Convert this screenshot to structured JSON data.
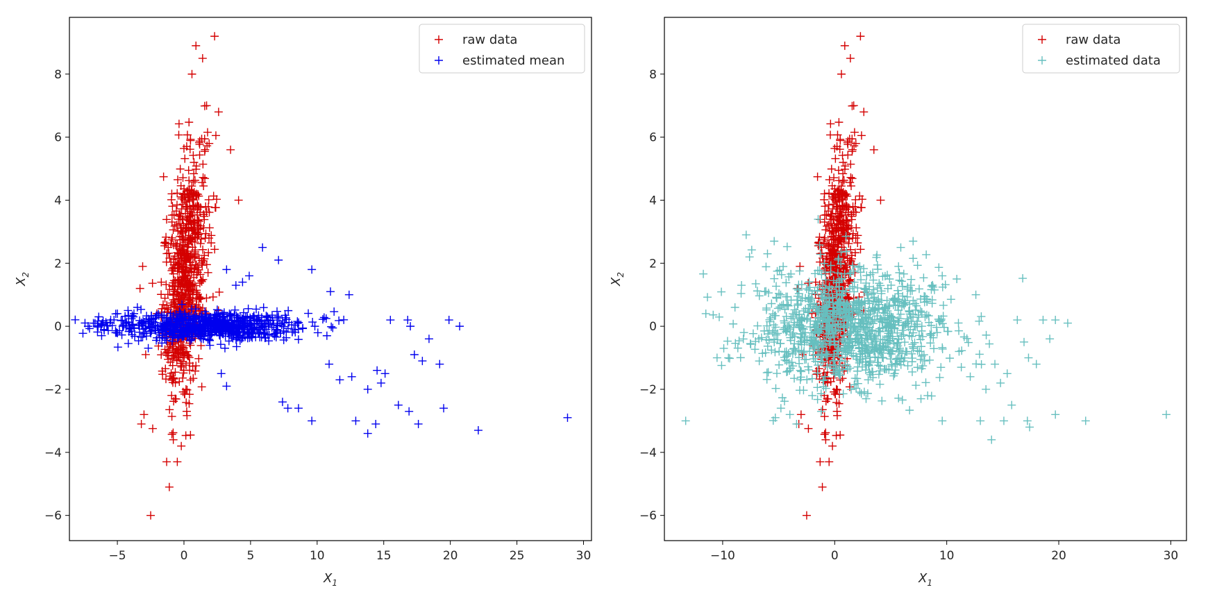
{
  "chart_data": [
    {
      "type": "scatter",
      "marker": "plus",
      "xlabel_var": "X",
      "xlabel_sub": "1",
      "ylabel_var": "X",
      "ylabel_sub": "2",
      "xlim": [
        -8.6,
        30.6
      ],
      "ylim": [
        -6.8,
        9.8
      ],
      "xticks": [
        -5,
        0,
        5,
        10,
        15,
        20,
        25,
        30
      ],
      "xtick_labels": [
        "−5",
        "0",
        "5",
        "10",
        "15",
        "20",
        "25",
        "30"
      ],
      "yticks": [
        -6,
        -4,
        -2,
        0,
        2,
        4,
        6,
        8
      ],
      "ytick_labels": [
        "−6",
        "−4",
        "−2",
        "0",
        "2",
        "4",
        "6",
        "8"
      ],
      "legend_position": "top-right",
      "grid": false,
      "series": [
        {
          "name": "raw data",
          "color": "#d40000",
          "cluster": {
            "count": 720,
            "x_mean": 0.1,
            "x_sd": 0.85,
            "y_mean": 1.6,
            "y_sd": 2.0,
            "corr": 0.45
          },
          "points": [
            [
              2.3,
              9.2
            ],
            [
              0.9,
              8.9
            ],
            [
              1.4,
              8.5
            ],
            [
              0.6,
              8.0
            ],
            [
              1.7,
              7.0
            ],
            [
              2.6,
              6.8
            ],
            [
              3.5,
              5.6
            ],
            [
              4.1,
              4.0
            ],
            [
              -2.5,
              -6.0
            ],
            [
              -1.1,
              -5.1
            ],
            [
              -1.3,
              -4.3
            ],
            [
              -0.5,
              -4.3
            ],
            [
              -0.2,
              -3.8
            ],
            [
              -0.8,
              -3.6
            ],
            [
              -3.2,
              -3.1
            ],
            [
              -3.0,
              -2.8
            ],
            [
              -3.3,
              1.2
            ],
            [
              -3.1,
              1.9
            ]
          ]
        },
        {
          "name": "estimated mean",
          "color": "#0000ee",
          "cluster": {
            "count": 760,
            "x_mean": 1.5,
            "x_sd": 3.6,
            "y_mean": 0.0,
            "y_sd": 0.22,
            "corr": 0.0
          },
          "points": [
            [
              28.8,
              -2.9
            ],
            [
              22.1,
              -3.3
            ],
            [
              19.5,
              -2.6
            ],
            [
              17.6,
              -3.1
            ],
            [
              16.9,
              -2.7
            ],
            [
              16.1,
              -2.5
            ],
            [
              14.4,
              -3.1
            ],
            [
              13.8,
              -3.4
            ],
            [
              12.9,
              -3.0
            ],
            [
              9.6,
              -3.0
            ],
            [
              8.6,
              -2.6
            ],
            [
              7.8,
              -2.6
            ],
            [
              7.4,
              -2.4
            ],
            [
              15.1,
              -1.5
            ],
            [
              14.8,
              -1.8
            ],
            [
              14.5,
              -1.4
            ],
            [
              13.8,
              -2.0
            ],
            [
              12.6,
              -1.6
            ],
            [
              11.7,
              -1.7
            ],
            [
              10.9,
              -1.2
            ],
            [
              19.2,
              -1.2
            ],
            [
              17.9,
              -1.1
            ],
            [
              17.3,
              -0.9
            ],
            [
              18.4,
              -0.4
            ],
            [
              19.9,
              0.2
            ],
            [
              20.7,
              0.0
            ],
            [
              16.8,
              0.2
            ],
            [
              15.5,
              0.2
            ],
            [
              17.0,
              0.0
            ],
            [
              5.9,
              2.5
            ],
            [
              7.1,
              2.1
            ],
            [
              9.6,
              1.8
            ],
            [
              11.0,
              1.1
            ],
            [
              12.4,
              1.0
            ],
            [
              4.9,
              1.6
            ],
            [
              4.4,
              1.4
            ],
            [
              3.9,
              1.3
            ],
            [
              3.2,
              1.8
            ],
            [
              3.2,
              -1.9
            ],
            [
              2.8,
              -1.5
            ],
            [
              -7.2,
              0.0
            ],
            [
              -6.8,
              0.1
            ],
            [
              -6.4,
              0.3
            ],
            [
              -6.0,
              -0.1
            ],
            [
              -5.5,
              0.2
            ],
            [
              -5.0,
              0.4
            ],
            [
              -4.6,
              0.0
            ],
            [
              -4.2,
              0.5
            ],
            [
              -3.8,
              0.3
            ],
            [
              -3.5,
              0.6
            ]
          ]
        }
      ]
    },
    {
      "type": "scatter",
      "marker": "plus",
      "xlabel_var": "X",
      "xlabel_sub": "1",
      "ylabel_var": "X",
      "ylabel_sub": "2",
      "xlim": [
        -15.2,
        31.4
      ],
      "ylim": [
        -6.8,
        9.8
      ],
      "xticks": [
        -10,
        0,
        10,
        20,
        30
      ],
      "xtick_labels": [
        "−10",
        "0",
        "10",
        "20",
        "30"
      ],
      "yticks": [
        -6,
        -4,
        -2,
        0,
        2,
        4,
        6,
        8
      ],
      "ytick_labels": [
        "−6",
        "−4",
        "−2",
        "0",
        "2",
        "4",
        "6",
        "8"
      ],
      "legend_position": "top-right",
      "grid": false,
      "series": [
        {
          "name": "raw data",
          "color": "#d40000",
          "cluster": {
            "count": 720,
            "x_mean": 0.1,
            "x_sd": 0.85,
            "y_mean": 1.6,
            "y_sd": 2.0,
            "corr": 0.45
          },
          "points": [
            [
              2.3,
              9.2
            ],
            [
              0.9,
              8.9
            ],
            [
              1.4,
              8.5
            ],
            [
              0.6,
              8.0
            ],
            [
              1.7,
              7.0
            ],
            [
              2.6,
              6.8
            ],
            [
              3.5,
              5.6
            ],
            [
              4.1,
              4.0
            ],
            [
              -2.5,
              -6.0
            ],
            [
              -1.1,
              -5.1
            ],
            [
              -1.3,
              -4.3
            ],
            [
              -0.5,
              -4.3
            ],
            [
              -0.2,
              -3.8
            ],
            [
              -0.8,
              -3.6
            ],
            [
              -3.2,
              -3.1
            ],
            [
              -3.0,
              -2.8
            ],
            [
              -3.3,
              1.2
            ],
            [
              -3.1,
              1.9
            ]
          ]
        },
        {
          "name": "estimated data",
          "color": "#66bfbf",
          "cluster": {
            "count": 1100,
            "x_mean": 1.5,
            "x_sd": 4.2,
            "y_mean": 0.0,
            "y_sd": 0.9,
            "corr": 0.0
          },
          "points": [
            [
              29.6,
              -2.8
            ],
            [
              22.4,
              -3.0
            ],
            [
              19.7,
              -2.8
            ],
            [
              17.4,
              -3.2
            ],
            [
              17.2,
              -3.0
            ],
            [
              15.8,
              -2.5
            ],
            [
              15.1,
              -3.0
            ],
            [
              14.0,
              -3.6
            ],
            [
              13.0,
              -3.0
            ],
            [
              9.6,
              -3.0
            ],
            [
              8.3,
              -2.2
            ],
            [
              7.7,
              -2.3
            ],
            [
              -13.3,
              -3.0
            ],
            [
              -11.5,
              0.4
            ],
            [
              -10.5,
              -1.0
            ],
            [
              -9.9,
              -0.7
            ],
            [
              -8.9,
              0.6
            ],
            [
              -8.1,
              -0.2
            ],
            [
              -7.9,
              2.9
            ],
            [
              -7.6,
              2.2
            ],
            [
              -6.0,
              2.3
            ],
            [
              -5.4,
              2.7
            ],
            [
              -5.3,
              -2.9
            ],
            [
              -4.8,
              -2.6
            ],
            [
              -4.0,
              -2.8
            ],
            [
              -3.4,
              -3.1
            ],
            [
              5.9,
              2.5
            ],
            [
              7.0,
              2.7
            ],
            [
              9.6,
              1.6
            ],
            [
              10.9,
              1.5
            ],
            [
              12.6,
              1.0
            ],
            [
              20.8,
              0.1
            ],
            [
              19.7,
              0.2
            ],
            [
              18.6,
              0.2
            ],
            [
              19.2,
              -0.4
            ],
            [
              18.0,
              -1.2
            ],
            [
              17.3,
              -1.0
            ],
            [
              16.9,
              -0.5
            ],
            [
              16.3,
              0.2
            ],
            [
              15.4,
              -1.5
            ],
            [
              14.8,
              -1.8
            ],
            [
              14.3,
              -1.2
            ],
            [
              13.5,
              -2.0
            ],
            [
              12.1,
              -1.6
            ],
            [
              11.3,
              -1.3
            ],
            [
              4.9,
              1.5
            ],
            [
              3.4,
              1.7
            ],
            [
              2.8,
              -2.3
            ],
            [
              -1.2,
              -2.7
            ],
            [
              -2.0,
              -2.2
            ]
          ]
        }
      ]
    }
  ]
}
